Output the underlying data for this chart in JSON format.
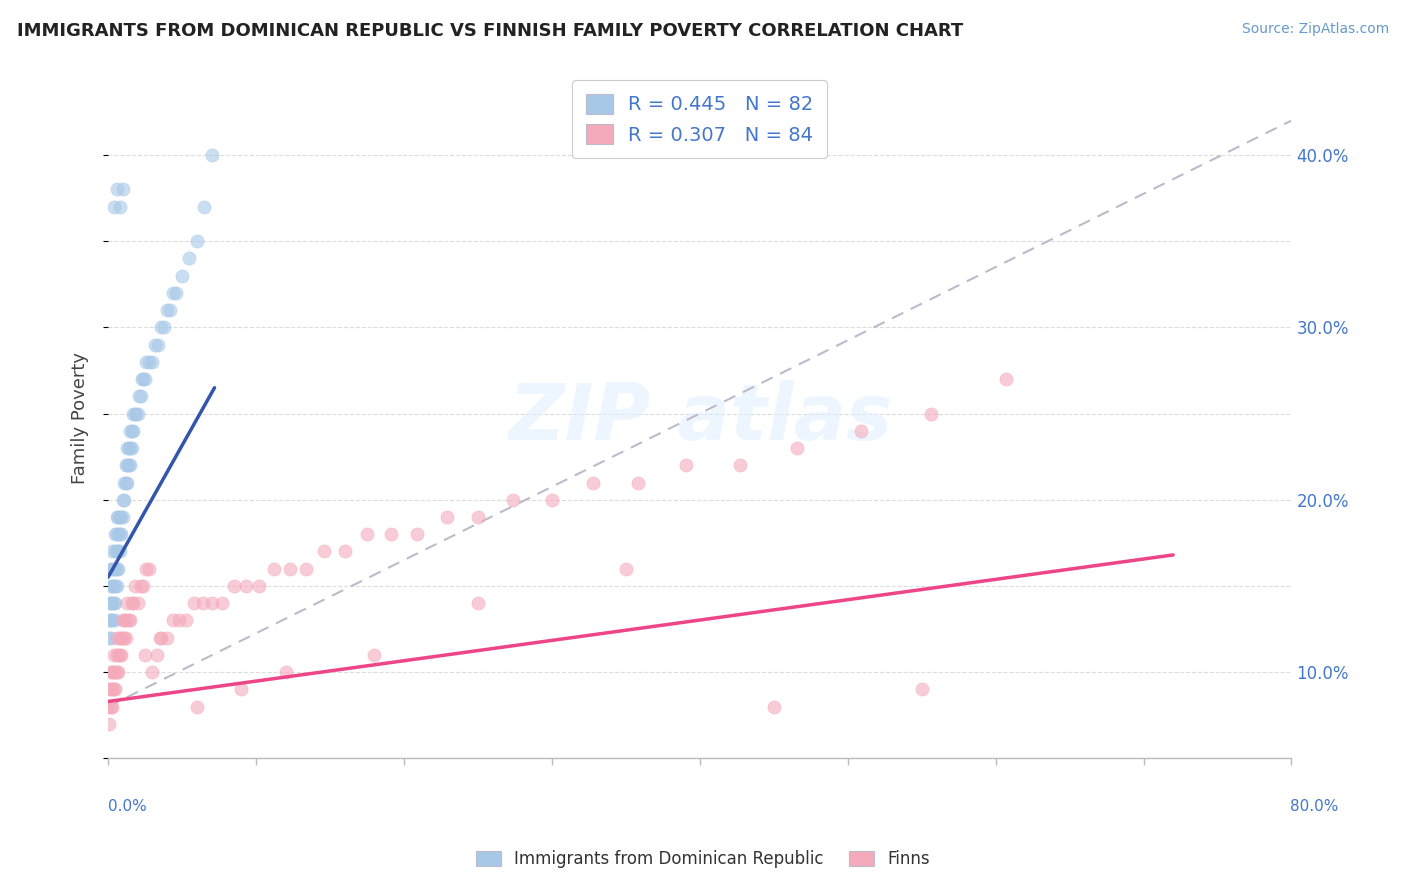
{
  "title": "IMMIGRANTS FROM DOMINICAN REPUBLIC VS FINNISH FAMILY POVERTY CORRELATION CHART",
  "source": "Source: ZipAtlas.com",
  "ylabel": "Family Poverty",
  "right_yticks": [
    "40.0%",
    "30.0%",
    "20.0%",
    "10.0%"
  ],
  "right_ytick_vals": [
    0.4,
    0.3,
    0.2,
    0.1
  ],
  "legend1_label": "R = 0.445   N = 82",
  "legend2_label": "R = 0.307   N = 84",
  "legend_bottom_label1": "Immigrants from Dominican Republic",
  "legend_bottom_label2": "Finns",
  "blue_color": "#A8C8E8",
  "pink_color": "#F4AABB",
  "blue_line_color": "#3355AA",
  "pink_line_color": "#EE4488",
  "dashed_line_color": "#BBBBCC",
  "xlim": [
    0.0,
    0.8
  ],
  "ylim": [
    0.05,
    0.445
  ],
  "bg_color": "#FFFFFF",
  "scatter_blue_x": [
    0.001,
    0.001,
    0.001,
    0.002,
    0.002,
    0.002,
    0.002,
    0.002,
    0.003,
    0.003,
    0.003,
    0.003,
    0.003,
    0.004,
    0.004,
    0.004,
    0.005,
    0.005,
    0.005,
    0.005,
    0.005,
    0.005,
    0.006,
    0.006,
    0.006,
    0.006,
    0.006,
    0.007,
    0.007,
    0.007,
    0.007,
    0.008,
    0.008,
    0.008,
    0.009,
    0.009,
    0.01,
    0.01,
    0.011,
    0.011,
    0.012,
    0.012,
    0.013,
    0.013,
    0.013,
    0.014,
    0.014,
    0.015,
    0.015,
    0.015,
    0.016,
    0.016,
    0.017,
    0.017,
    0.018,
    0.019,
    0.02,
    0.021,
    0.022,
    0.023,
    0.024,
    0.025,
    0.026,
    0.028,
    0.03,
    0.032,
    0.034,
    0.036,
    0.038,
    0.04,
    0.042,
    0.044,
    0.046,
    0.05,
    0.055,
    0.06,
    0.065,
    0.07,
    0.008,
    0.01,
    0.004,
    0.006
  ],
  "scatter_blue_y": [
    0.12,
    0.13,
    0.14,
    0.12,
    0.13,
    0.14,
    0.15,
    0.16,
    0.13,
    0.14,
    0.15,
    0.16,
    0.17,
    0.14,
    0.15,
    0.16,
    0.13,
    0.14,
    0.15,
    0.16,
    0.17,
    0.18,
    0.15,
    0.16,
    0.17,
    0.18,
    0.19,
    0.16,
    0.17,
    0.18,
    0.19,
    0.17,
    0.18,
    0.19,
    0.18,
    0.19,
    0.19,
    0.2,
    0.2,
    0.21,
    0.21,
    0.22,
    0.21,
    0.22,
    0.23,
    0.22,
    0.23,
    0.22,
    0.23,
    0.24,
    0.23,
    0.24,
    0.24,
    0.25,
    0.25,
    0.25,
    0.25,
    0.26,
    0.26,
    0.27,
    0.27,
    0.27,
    0.28,
    0.28,
    0.28,
    0.29,
    0.29,
    0.3,
    0.3,
    0.31,
    0.31,
    0.32,
    0.32,
    0.33,
    0.34,
    0.35,
    0.37,
    0.4,
    0.37,
    0.38,
    0.37,
    0.38
  ],
  "scatter_pink_x": [
    0.001,
    0.001,
    0.001,
    0.002,
    0.002,
    0.002,
    0.003,
    0.003,
    0.003,
    0.004,
    0.004,
    0.004,
    0.005,
    0.005,
    0.006,
    0.006,
    0.006,
    0.007,
    0.007,
    0.008,
    0.008,
    0.009,
    0.009,
    0.01,
    0.01,
    0.011,
    0.011,
    0.012,
    0.012,
    0.013,
    0.014,
    0.015,
    0.016,
    0.017,
    0.018,
    0.02,
    0.022,
    0.024,
    0.026,
    0.028,
    0.03,
    0.033,
    0.036,
    0.04,
    0.044,
    0.048,
    0.053,
    0.058,
    0.064,
    0.07,
    0.077,
    0.085,
    0.093,
    0.102,
    0.112,
    0.123,
    0.134,
    0.146,
    0.16,
    0.175,
    0.191,
    0.209,
    0.229,
    0.25,
    0.274,
    0.3,
    0.328,
    0.358,
    0.391,
    0.427,
    0.466,
    0.509,
    0.556,
    0.607,
    0.025,
    0.035,
    0.06,
    0.09,
    0.12,
    0.18,
    0.25,
    0.35,
    0.45,
    0.55
  ],
  "scatter_pink_y": [
    0.07,
    0.08,
    0.09,
    0.08,
    0.09,
    0.1,
    0.08,
    0.09,
    0.1,
    0.09,
    0.1,
    0.11,
    0.09,
    0.1,
    0.1,
    0.11,
    0.12,
    0.1,
    0.11,
    0.11,
    0.12,
    0.11,
    0.12,
    0.12,
    0.13,
    0.12,
    0.13,
    0.12,
    0.13,
    0.14,
    0.13,
    0.13,
    0.14,
    0.14,
    0.15,
    0.14,
    0.15,
    0.15,
    0.16,
    0.16,
    0.1,
    0.11,
    0.12,
    0.12,
    0.13,
    0.13,
    0.13,
    0.14,
    0.14,
    0.14,
    0.14,
    0.15,
    0.15,
    0.15,
    0.16,
    0.16,
    0.16,
    0.17,
    0.17,
    0.18,
    0.18,
    0.18,
    0.19,
    0.19,
    0.2,
    0.2,
    0.21,
    0.21,
    0.22,
    0.22,
    0.23,
    0.24,
    0.25,
    0.27,
    0.11,
    0.12,
    0.08,
    0.09,
    0.1,
    0.11,
    0.14,
    0.16,
    0.08,
    0.09
  ],
  "blue_trend_x": [
    0.0,
    0.072
  ],
  "blue_trend_y": [
    0.155,
    0.265
  ],
  "pink_trend_x": [
    0.0,
    0.72
  ],
  "pink_trend_y": [
    0.083,
    0.168
  ],
  "dashed_trend_x": [
    0.0,
    0.8
  ],
  "dashed_trend_y": [
    0.08,
    0.42
  ]
}
